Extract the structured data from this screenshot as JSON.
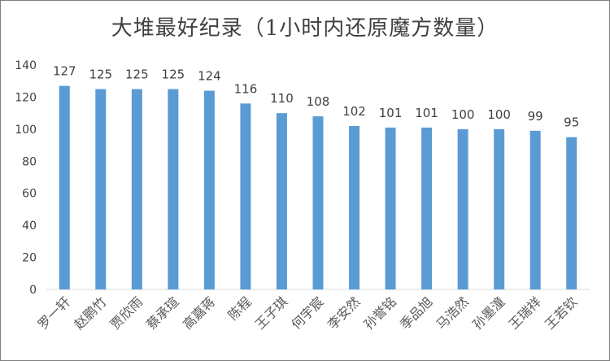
{
  "chart_data": {
    "type": "bar",
    "title": "大堆最好纪录（1小时内还原魔方数量）",
    "categories": [
      "罗一轩",
      "赵鹏竹",
      "贾欣雨",
      "蔡承瑄",
      "高嘉蒋",
      "陈程",
      "王子琪",
      "何宇宸",
      "李安然",
      "孙誉铭",
      "季品旭",
      "马浩然",
      "孙墨潼",
      "王瑞祥",
      "王若钦"
    ],
    "values": [
      127,
      125,
      125,
      125,
      124,
      116,
      110,
      108,
      102,
      101,
      101,
      100,
      100,
      99,
      95
    ],
    "ylim": [
      0,
      140
    ],
    "yticks": [
      0,
      20,
      40,
      60,
      80,
      100,
      120,
      140
    ],
    "grid": false,
    "bar_color": "#5b9bd5",
    "xlabel": "",
    "ylabel": ""
  }
}
